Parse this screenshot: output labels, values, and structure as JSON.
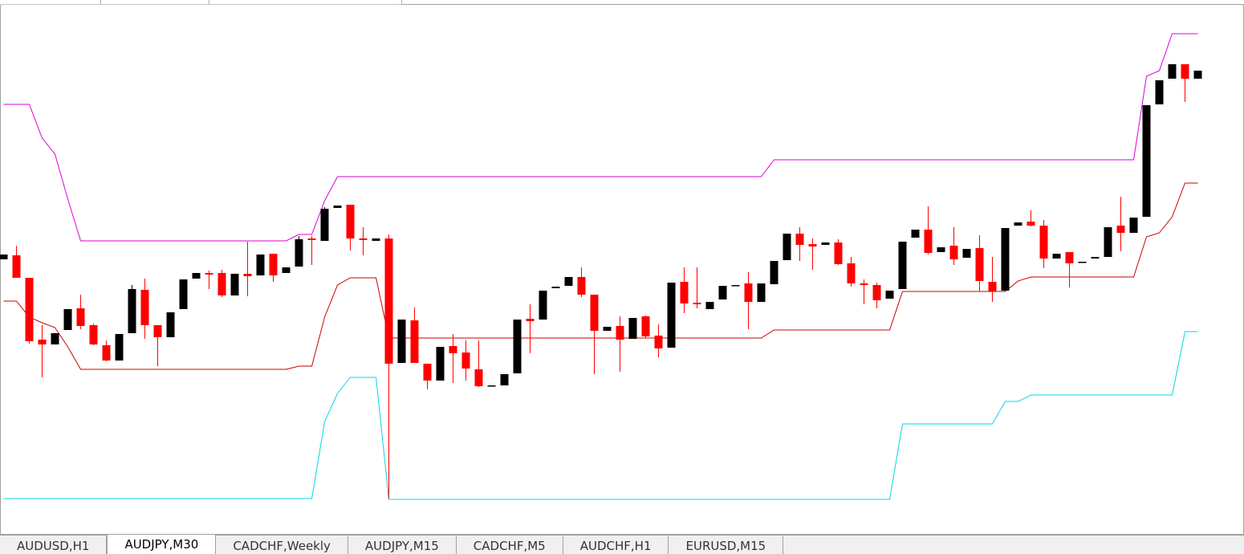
{
  "chart_data": {
    "type": "candlestick",
    "ylim": [
      0,
      660
    ],
    "up_color": "#000000",
    "down_color": "#ff0000",
    "open": [
      337,
      342,
      314,
      237,
      231,
      249,
      276,
      255,
      230,
      211,
      245,
      299,
      255,
      240,
      275,
      313,
      320,
      320,
      292,
      319,
      317,
      344,
      320,
      328,
      363,
      360,
      401,
      405,
      363,
      360,
      363,
      208,
      261,
      207,
      186,
      229,
      221,
      200,
      179,
      180,
      195,
      263,
      262,
      301,
      304,
      315,
      293,
      248,
      254,
      238,
      266,
      242,
      227,
      309,
      283,
      275,
      287,
      304,
      307,
      284,
      306,
      336,
      369,
      356,
      355,
      358,
      332,
      307,
      305,
      288,
      300,
      364,
      374,
      346,
      354,
      339,
      351,
      309,
      298,
      379,
      384,
      379,
      338,
      346,
      333,
      338,
      340,
      379,
      370,
      390,
      530,
      562,
      580,
      562
    ],
    "high": [
      343,
      354,
      314,
      255,
      245,
      275,
      293,
      257,
      236,
      244,
      305,
      313,
      255,
      271,
      312,
      320,
      323,
      324,
      319,
      359,
      343,
      344,
      327,
      366,
      366,
      402,
      404,
      405,
      377,
      363,
      368,
      262,
      277,
      207,
      228,
      244,
      236,
      236,
      180,
      194,
      262,
      281,
      298,
      303,
      315,
      327,
      293,
      253,
      266,
      264,
      267,
      256,
      308,
      327,
      327,
      284,
      304,
      305,
      321,
      307,
      335,
      369,
      377,
      363,
      358,
      362,
      340,
      312,
      308,
      298,
      359,
      374,
      403,
      352,
      377,
      350,
      367,
      340,
      376,
      383,
      398,
      386,
      344,
      346,
      334,
      340,
      377,
      415,
      389,
      529,
      560,
      580,
      580,
      572
    ],
    "low": [
      337,
      314,
      232,
      190,
      231,
      249,
      250,
      230,
      210,
      211,
      245,
      238,
      204,
      240,
      275,
      313,
      300,
      290,
      292,
      291,
      317,
      309,
      320,
      328,
      330,
      360,
      401,
      348,
      342,
      360,
      39,
      208,
      208,
      175,
      186,
      183,
      186,
      178,
      179,
      180,
      195,
      220,
      262,
      301,
      304,
      290,
      194,
      248,
      197,
      238,
      239,
      215,
      227,
      270,
      276,
      275,
      287,
      304,
      250,
      284,
      306,
      336,
      335,
      324,
      355,
      330,
      303,
      281,
      276,
      288,
      300,
      364,
      343,
      346,
      330,
      339,
      297,
      284,
      298,
      379,
      378,
      326,
      338,
      302,
      333,
      338,
      340,
      347,
      370,
      390,
      530,
      562,
      533,
      562
    ],
    "close": [
      343,
      314,
      235,
      231,
      245,
      275,
      254,
      231,
      211,
      244,
      300,
      255,
      240,
      271,
      312,
      320,
      318,
      292,
      319,
      316,
      343,
      317,
      327,
      362,
      361,
      400,
      404,
      363,
      361,
      363,
      207,
      262,
      208,
      186,
      228,
      220,
      201,
      179,
      180,
      194,
      262,
      260,
      298,
      303,
      315,
      293,
      248,
      253,
      237,
      264,
      241,
      226,
      308,
      282,
      281,
      284,
      304,
      305,
      284,
      307,
      335,
      369,
      355,
      353,
      358,
      331,
      307,
      305,
      286,
      298,
      359,
      374,
      345,
      352,
      337,
      350,
      310,
      297,
      376,
      383,
      379,
      338,
      344,
      332,
      334,
      340,
      377,
      370,
      389,
      529,
      560,
      580,
      562,
      572
    ],
    "lines": [
      {
        "color": "#dd00dd",
        "values": [
          530,
          530,
          530,
          488,
          468,
          412,
          360,
          360,
          360,
          360,
          360,
          360,
          360,
          360,
          360,
          360,
          360,
          360,
          360,
          360,
          360,
          360,
          360,
          368,
          368,
          410,
          440,
          440,
          440,
          440,
          440,
          440,
          440,
          440,
          440,
          440,
          440,
          440,
          440,
          440,
          440,
          440,
          440,
          440,
          440,
          440,
          440,
          440,
          440,
          440,
          440,
          440,
          440,
          440,
          440,
          440,
          440,
          440,
          440,
          440,
          461,
          461,
          461,
          461,
          461,
          461,
          461,
          461,
          461,
          461,
          461,
          461,
          461,
          461,
          461,
          461,
          461,
          461,
          461,
          461,
          461,
          461,
          461,
          461,
          461,
          461,
          461,
          461,
          461,
          565,
          572,
          618,
          618,
          618
        ]
      },
      {
        "color": "#cc0000",
        "values": [
          285,
          285,
          265,
          258,
          252,
          228,
          200,
          200,
          200,
          200,
          200,
          200,
          200,
          200,
          200,
          200,
          200,
          200,
          200,
          200,
          200,
          200,
          200,
          204,
          204,
          265,
          305,
          314,
          314,
          314,
          239,
          239,
          239,
          239,
          239,
          239,
          239,
          239,
          239,
          239,
          239,
          239,
          239,
          239,
          239,
          239,
          239,
          239,
          239,
          239,
          239,
          239,
          239,
          239,
          239,
          239,
          239,
          239,
          239,
          239,
          249,
          249,
          249,
          249,
          249,
          249,
          249,
          249,
          249,
          249,
          297,
          297,
          297,
          297,
          297,
          297,
          297,
          297,
          297,
          310,
          315,
          315,
          315,
          315,
          315,
          315,
          315,
          315,
          315,
          365,
          370,
          390,
          432,
          432
        ]
      },
      {
        "color": "#00d8e8",
        "values": [
          39,
          39,
          39,
          39,
          39,
          39,
          39,
          39,
          39,
          39,
          39,
          39,
          39,
          39,
          39,
          39,
          39,
          39,
          39,
          39,
          39,
          39,
          39,
          39,
          39,
          135,
          170,
          190,
          190,
          190,
          38,
          38,
          38,
          38,
          38,
          38,
          38,
          38,
          38,
          38,
          38,
          38,
          38,
          38,
          38,
          38,
          38,
          38,
          38,
          38,
          38,
          38,
          38,
          38,
          38,
          38,
          38,
          38,
          38,
          38,
          38,
          38,
          38,
          38,
          38,
          38,
          38,
          38,
          38,
          38,
          132,
          132,
          132,
          132,
          132,
          132,
          132,
          132,
          160,
          160,
          168,
          168,
          168,
          168,
          168,
          168,
          168,
          168,
          168,
          168,
          168,
          168,
          247,
          247
        ]
      }
    ]
  },
  "tabs": {
    "labels": [
      "AUDUSD,H1",
      "AUDJPY,M30",
      "CADCHF,Weekly",
      "AUDJPY,M15",
      "CADCHF,M5",
      "AUDCHF,H1",
      "EURUSD,M15"
    ],
    "active": 1
  }
}
